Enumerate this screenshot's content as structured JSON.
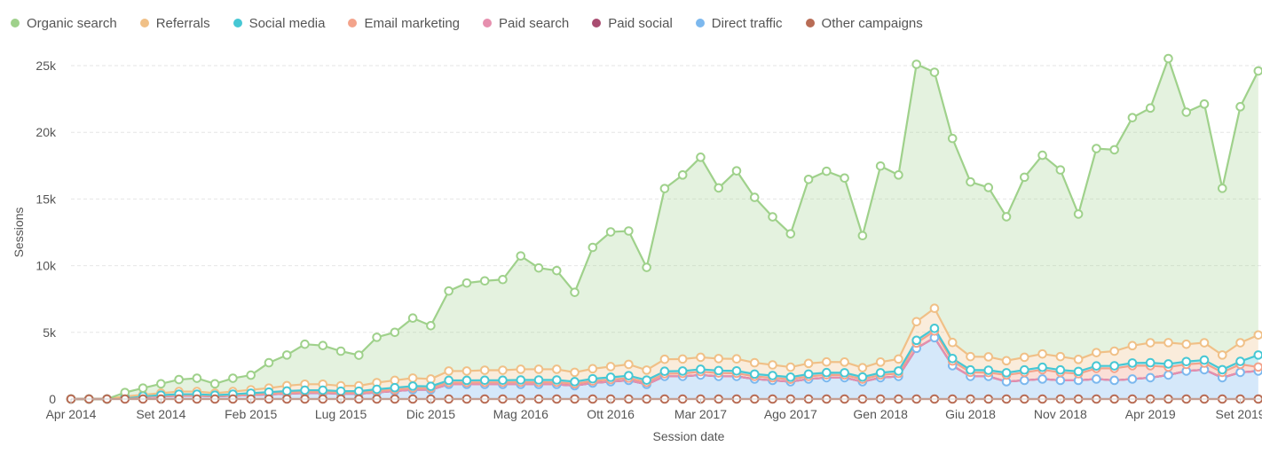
{
  "chart_data": {
    "type": "area",
    "xlabel": "Session date",
    "ylabel": "Sessions",
    "ylim": [
      0,
      25000
    ],
    "yticks": [
      0,
      5000,
      10000,
      15000,
      20000,
      25000
    ],
    "ytick_labels": [
      "0",
      "5k",
      "10k",
      "15k",
      "20k",
      "25k"
    ],
    "x_start": "Apr 2014",
    "x_tick_every_months": 5,
    "xtick_labels": [
      "Apr 2014",
      "Set 2014",
      "Feb 2015",
      "Lug 2015",
      "Dic 2015",
      "Mag 2016",
      "Ott 2016",
      "Mar 2017",
      "Ago 2017",
      "Gen 2018",
      "Giu 2018",
      "Nov 2018",
      "Apr 2019",
      "Set 2019"
    ],
    "grid": true,
    "legend_position": "top-left",
    "series": [
      {
        "name": "Organic search",
        "color": "#9fd18b",
        "values": [
          0,
          0,
          0,
          300,
          500,
          700,
          900,
          1000,
          700,
          1000,
          1100,
          1900,
          2300,
          3000,
          2900,
          2600,
          2300,
          3400,
          3600,
          4500,
          4000,
          6000,
          6600,
          6700,
          6800,
          8500,
          7600,
          7400,
          6000,
          9100,
          10100,
          10000,
          7700,
          12800,
          13800,
          15000,
          12800,
          14100,
          12400,
          11100,
          10000,
          13800,
          14300,
          13800,
          9900,
          14700,
          13800,
          19300,
          17700,
          15300,
          13100,
          12700,
          10800,
          13500,
          14900,
          14000,
          10900,
          15300,
          15100,
          17100,
          17600,
          21300,
          17400,
          17900,
          12500,
          17700,
          19800
        ]
      },
      {
        "name": "Referrals",
        "color": "#f0c087",
        "values": [
          0,
          0,
          0,
          50,
          100,
          150,
          200,
          200,
          150,
          200,
          250,
          300,
          400,
          450,
          450,
          400,
          400,
          500,
          550,
          600,
          550,
          700,
          700,
          750,
          750,
          800,
          800,
          800,
          700,
          750,
          800,
          850,
          750,
          900,
          900,
          900,
          900,
          900,
          850,
          800,
          750,
          800,
          800,
          800,
          700,
          800,
          900,
          1400,
          1500,
          1200,
          1000,
          1000,
          900,
          950,
          1000,
          1000,
          900,
          1000,
          1100,
          1300,
          1500,
          1600,
          1300,
          1300,
          1100,
          1400,
          1500
        ]
      },
      {
        "name": "Social media",
        "color": "#46c7d4",
        "values": [
          0,
          0,
          0,
          20,
          40,
          50,
          60,
          60,
          50,
          60,
          80,
          100,
          120,
          120,
          120,
          110,
          110,
          130,
          140,
          150,
          140,
          160,
          160,
          160,
          160,
          170,
          170,
          170,
          160,
          170,
          170,
          180,
          170,
          180,
          180,
          180,
          180,
          180,
          170,
          170,
          160,
          170,
          170,
          170,
          160,
          170,
          180,
          200,
          200,
          190,
          180,
          180,
          170,
          180,
          180,
          180,
          170,
          180,
          190,
          200,
          220,
          230,
          210,
          220,
          200,
          220,
          900
        ]
      },
      {
        "name": "Email marketing",
        "color": "#f3a38b",
        "values": [
          0,
          0,
          0,
          20,
          30,
          40,
          50,
          50,
          40,
          50,
          60,
          70,
          80,
          90,
          90,
          80,
          80,
          100,
          110,
          120,
          110,
          140,
          140,
          150,
          150,
          160,
          160,
          160,
          140,
          150,
          160,
          170,
          150,
          200,
          220,
          250,
          250,
          230,
          200,
          190,
          180,
          200,
          210,
          200,
          190,
          200,
          220,
          400,
          500,
          350,
          300,
          280,
          500,
          600,
          700,
          600,
          500,
          800,
          900,
          1000,
          900,
          600,
          500,
          500,
          400,
          600,
          300
        ]
      },
      {
        "name": "Paid search",
        "color": "#e68fae",
        "values": [
          0,
          0,
          0,
          0,
          0,
          0,
          0,
          0,
          0,
          0,
          0,
          0,
          0,
          0,
          0,
          0,
          0,
          0,
          0,
          0,
          0,
          0,
          0,
          0,
          0,
          0,
          0,
          0,
          0,
          0,
          0,
          0,
          0,
          0,
          0,
          0,
          0,
          0,
          0,
          0,
          0,
          0,
          0,
          0,
          0,
          0,
          0,
          0,
          0,
          0,
          0,
          0,
          0,
          0,
          0,
          0,
          0,
          0,
          0,
          0,
          0,
          0,
          0,
          0,
          0,
          0,
          0
        ]
      },
      {
        "name": "Paid social",
        "color": "#a94d71",
        "values": [
          0,
          0,
          0,
          0,
          0,
          0,
          0,
          0,
          0,
          0,
          0,
          0,
          0,
          0,
          0,
          0,
          0,
          0,
          0,
          0,
          0,
          0,
          0,
          0,
          0,
          0,
          0,
          0,
          0,
          0,
          0,
          0,
          0,
          0,
          0,
          0,
          0,
          0,
          0,
          0,
          0,
          0,
          0,
          0,
          0,
          0,
          0,
          0,
          0,
          0,
          0,
          0,
          0,
          0,
          0,
          0,
          0,
          0,
          0,
          0,
          0,
          0,
          0,
          0,
          0,
          0,
          0
        ]
      },
      {
        "name": "Direct traffic",
        "color": "#7cb8ee",
        "values": [
          0,
          0,
          0,
          100,
          150,
          200,
          250,
          250,
          200,
          250,
          300,
          350,
          400,
          450,
          450,
          400,
          400,
          500,
          600,
          700,
          700,
          1100,
          1100,
          1100,
          1100,
          1100,
          1100,
          1100,
          1000,
          1200,
          1300,
          1400,
          1100,
          1700,
          1700,
          1800,
          1700,
          1700,
          1500,
          1400,
          1300,
          1500,
          1600,
          1600,
          1300,
          1600,
          1700,
          3800,
          4600,
          2500,
          1700,
          1700,
          1300,
          1400,
          1500,
          1400,
          1400,
          1500,
          1400,
          1500,
          1600,
          1800,
          2100,
          2200,
          1600,
          2000,
          2100
        ]
      },
      {
        "name": "Other campaigns",
        "color": "#b86c55",
        "values": [
          0,
          0,
          0,
          0,
          0,
          0,
          0,
          0,
          0,
          0,
          0,
          0,
          0,
          0,
          0,
          0,
          0,
          0,
          0,
          0,
          0,
          0,
          0,
          0,
          0,
          0,
          0,
          0,
          0,
          0,
          0,
          0,
          0,
          0,
          0,
          0,
          0,
          0,
          0,
          0,
          0,
          0,
          0,
          0,
          0,
          0,
          0,
          0,
          0,
          0,
          0,
          0,
          0,
          0,
          0,
          0,
          0,
          0,
          0,
          0,
          0,
          0,
          0,
          0,
          0,
          0,
          0
        ]
      }
    ]
  }
}
